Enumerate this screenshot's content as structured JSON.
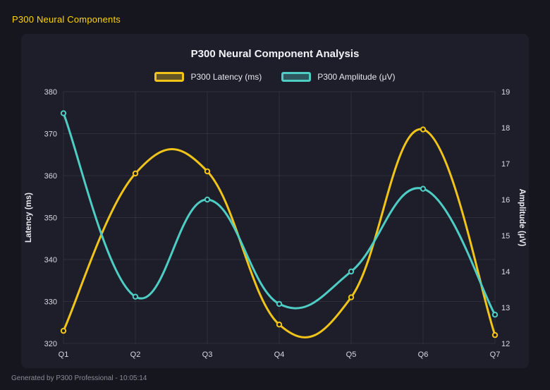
{
  "page": {
    "header_title": "P300 Neural Components",
    "footer_status": "Generated by P300 Professional - 10:05:14"
  },
  "colors": {
    "background": "#16161f",
    "panel": "#1e1e2a",
    "header_accent": "#ffd700",
    "grid": "rgba(255,255,255,0.08)",
    "latency": "#f0c419",
    "amplitude": "#4ecdc4"
  },
  "chart_data": {
    "type": "line",
    "title": "P300 Neural Component Analysis",
    "categories": [
      "Q1",
      "Q2",
      "Q3",
      "Q4",
      "Q5",
      "Q6",
      "Q7"
    ],
    "series": [
      {
        "name": "P300 Latency (ms)",
        "axis": "left",
        "color": "#f0c419",
        "values": [
          323,
          360.5,
          361,
          324.5,
          331,
          371,
          322
        ]
      },
      {
        "name": "P300 Amplitude (μV)",
        "axis": "right",
        "color": "#4ecdc4",
        "values": [
          18.4,
          13.3,
          16.0,
          13.1,
          14.0,
          16.3,
          12.8
        ]
      }
    ],
    "y_left": {
      "label": "Latency (ms)",
      "min": 320,
      "max": 380,
      "step": 10
    },
    "y_right": {
      "label": "Amplitude (μV)",
      "min": 12,
      "max": 19,
      "step": 1
    },
    "xlabel": "",
    "grid": true,
    "legend_position": "top",
    "line_tension": 0.4
  }
}
